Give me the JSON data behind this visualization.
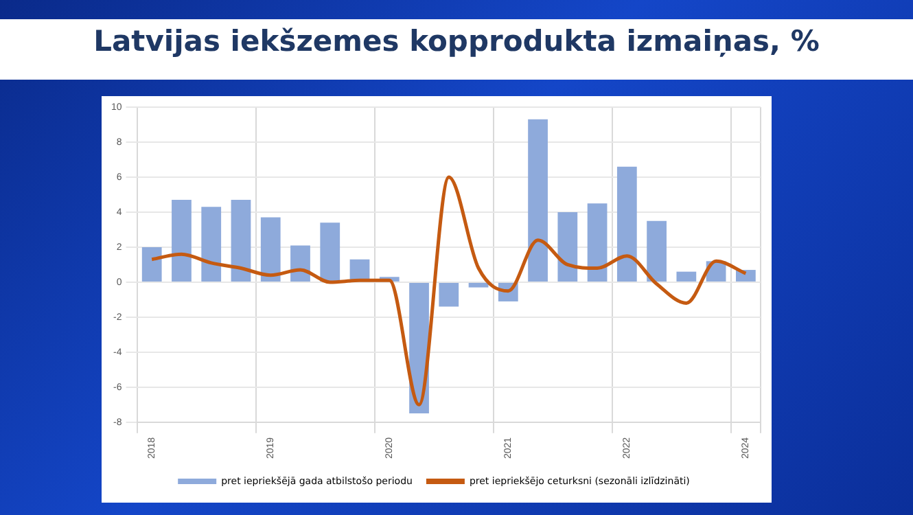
{
  "chart_data": {
    "type": "bar",
    "title": "Latvijas iekšzemes kopprodukta izmaiņas, %",
    "categories": [
      "2018",
      null,
      null,
      null,
      "2019",
      null,
      null,
      null,
      "2020",
      null,
      null,
      null,
      "2021",
      null,
      null,
      null,
      "2022",
      null,
      null,
      null,
      "2024"
    ],
    "series": [
      {
        "name": "pret iepriekšējā gada atbilstošo periodu",
        "color": "#8eaadb",
        "values": [
          2.0,
          4.7,
          4.3,
          4.7,
          3.7,
          2.1,
          3.4,
          1.3,
          0.3,
          -7.5,
          -1.4,
          -0.3,
          -1.1,
          9.3,
          4.0,
          4.5,
          6.6,
          3.5,
          0.6,
          1.2,
          0.7
        ]
      },
      {
        "name": "pret iepriekšējo ceturksni (sezonāli izlīdzināti)",
        "type": "line",
        "color": "#c55a11",
        "values": [
          1.3,
          1.6,
          1.1,
          0.8,
          0.4,
          0.7,
          0.0,
          0.1,
          0.1,
          -7.0,
          6.0,
          0.8,
          -0.5,
          2.4,
          1.0,
          0.8,
          1.5,
          -0.1,
          -1.2,
          1.2,
          0.5
        ]
      }
    ],
    "ylim": [
      -8,
      10
    ],
    "yticks": [
      -8,
      -6,
      -4,
      -2,
      0,
      2,
      4,
      6,
      8,
      10
    ],
    "grid": true,
    "legend": "bottom",
    "marker": "none"
  }
}
